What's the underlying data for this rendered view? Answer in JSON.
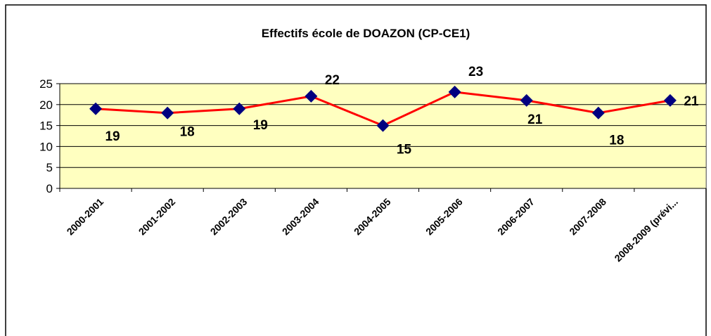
{
  "chart_data": {
    "type": "line",
    "title": "Effectifs école de DOAZON (CP-CE1)",
    "categories": [
      "2000-2001",
      "2001-2002",
      "2002-2003",
      "2003-2004",
      "2004-2005",
      "2005-2006",
      "2006-2007",
      "2007-2008",
      "2008-2009 (prévi..."
    ],
    "series": [
      {
        "name": "Effectifs",
        "color": "#ff0000",
        "marker_color": "#000080",
        "values": [
          19,
          18,
          19,
          22,
          15,
          23,
          21,
          18,
          21
        ]
      }
    ],
    "ylim": [
      0,
      25
    ],
    "yticks": [
      0,
      5,
      10,
      15,
      20,
      25
    ],
    "grid": true,
    "plot_background": "#ffffc0"
  }
}
